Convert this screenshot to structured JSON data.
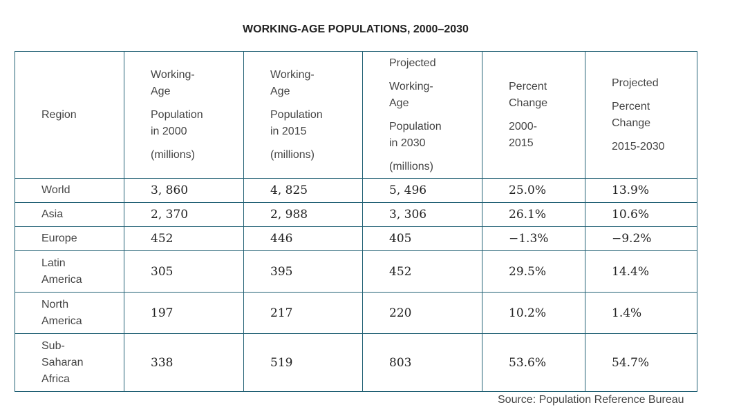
{
  "chart_data": {
    "type": "table",
    "title": "WORKING-AGE POPULATIONS, 2000–2030",
    "columns": [
      {
        "lines": [
          "Region"
        ],
        "gap_before": []
      },
      {
        "lines": [
          "Working-",
          "Age",
          "Population",
          "in 2000",
          "(millions)"
        ],
        "gap_before": [
          2,
          4
        ]
      },
      {
        "lines": [
          "Working-",
          "Age",
          "Population",
          "in 2015",
          "(millions)"
        ],
        "gap_before": [
          2,
          4
        ]
      },
      {
        "lines": [
          "Projected",
          "Working-",
          "Age",
          "Population",
          "in 2030",
          "(millions)"
        ],
        "gap_before": [
          1,
          3,
          5
        ]
      },
      {
        "lines": [
          "Percent",
          "Change",
          "2000-",
          "2015"
        ],
        "gap_before": [
          2
        ]
      },
      {
        "lines": [
          "Projected",
          "Percent",
          "Change",
          "2015-2030"
        ],
        "gap_before": [
          1,
          3
        ]
      }
    ],
    "rows": [
      {
        "region": [
          "World"
        ],
        "pop_2000": "3, 860",
        "pop_2015": "4, 825",
        "pop_2030": "5, 496",
        "change_2000_2015": "25.0%",
        "change_2015_2030": "13.9%"
      },
      {
        "region": [
          "Asia"
        ],
        "pop_2000": "2, 370",
        "pop_2015": "2, 988",
        "pop_2030": "3, 306",
        "change_2000_2015": "26.1%",
        "change_2015_2030": "10.6%"
      },
      {
        "region": [
          "Europe"
        ],
        "pop_2000": "452",
        "pop_2015": "446",
        "pop_2030": "405",
        "change_2000_2015": "−1.3%",
        "change_2015_2030": "−9.2%"
      },
      {
        "region": [
          "Latin",
          "America"
        ],
        "pop_2000": "305",
        "pop_2015": "395",
        "pop_2030": "452",
        "change_2000_2015": "29.5%",
        "change_2015_2030": "14.4%"
      },
      {
        "region": [
          "North",
          "America"
        ],
        "pop_2000": "197",
        "pop_2015": "217",
        "pop_2030": "220",
        "change_2000_2015": "10.2%",
        "change_2015_2030": "1.4%"
      },
      {
        "region": [
          "Sub-",
          "Saharan",
          "Africa"
        ],
        "pop_2000": "338",
        "pop_2015": "519",
        "pop_2030": "803",
        "change_2000_2015": "53.6%",
        "change_2015_2030": "54.7%"
      }
    ],
    "source": "Source: Population Reference Bureau"
  },
  "colors": {
    "border": "#1f5f73",
    "text": "#333333"
  }
}
